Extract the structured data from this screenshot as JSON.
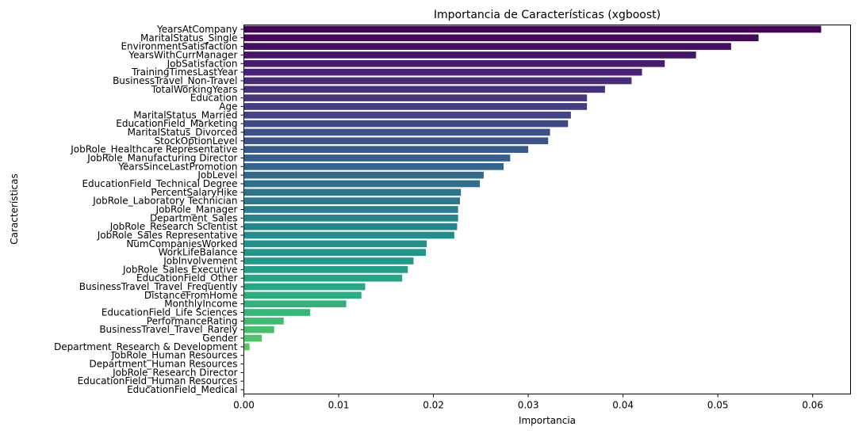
{
  "chart_data": {
    "type": "bar",
    "orientation": "horizontal",
    "title": "Importancia de Características (xgboost)",
    "xlabel": "Importancia",
    "ylabel": "Características",
    "xlim": [
      0,
      0.064
    ],
    "xticks": [
      0.0,
      0.01,
      0.02,
      0.03,
      0.04,
      0.05,
      0.06
    ],
    "xtick_labels": [
      "0.00",
      "0.01",
      "0.02",
      "0.03",
      "0.04",
      "0.05",
      "0.06"
    ],
    "grid": false,
    "palette": "viridis",
    "categories": [
      "YearsAtCompany",
      "MaritalStatus_Single",
      "EnvironmentSatisfaction",
      "YearsWithCurrManager",
      "JobSatisfaction",
      "TrainingTimesLastYear",
      "BusinessTravel_Non-Travel",
      "TotalWorkingYears",
      "Education",
      "Age",
      "MaritalStatus_Married",
      "EducationField_Marketing",
      "MaritalStatus_Divorced",
      "StockOptionLevel",
      "JobRole_Healthcare Representative",
      "JobRole_Manufacturing Director",
      "YearsSinceLastPromotion",
      "JobLevel",
      "EducationField_Technical Degree",
      "PercentSalaryHike",
      "JobRole_Laboratory Technician",
      "JobRole_Manager",
      "Department_Sales",
      "JobRole_Research Scientist",
      "JobRole_Sales Representative",
      "NumCompaniesWorked",
      "WorkLifeBalance",
      "JobInvolvement",
      "JobRole_Sales Executive",
      "EducationField_Other",
      "BusinessTravel_Travel_Frequently",
      "DistanceFromHome",
      "MonthlyIncome",
      "EducationField_Life Sciences",
      "PerformanceRating",
      "BusinessTravel_Travel_Rarely",
      "Gender",
      "Department_Research & Development",
      "JobRole_Human Resources",
      "Department_Human Resources",
      "JobRole_Research Director",
      "EducationField_Human Resources",
      "EducationField_Medical"
    ],
    "values": [
      0.0609,
      0.0543,
      0.0514,
      0.0477,
      0.0444,
      0.042,
      0.0409,
      0.0381,
      0.0362,
      0.0362,
      0.0345,
      0.0342,
      0.0323,
      0.0321,
      0.03,
      0.0281,
      0.0274,
      0.0253,
      0.0249,
      0.0229,
      0.0228,
      0.0226,
      0.0226,
      0.0225,
      0.0222,
      0.0193,
      0.0192,
      0.0179,
      0.0173,
      0.0167,
      0.0128,
      0.0124,
      0.0108,
      0.007,
      0.0042,
      0.0032,
      0.0019,
      0.0006,
      0.0,
      0.0,
      0.0,
      0.0,
      0.0
    ]
  }
}
